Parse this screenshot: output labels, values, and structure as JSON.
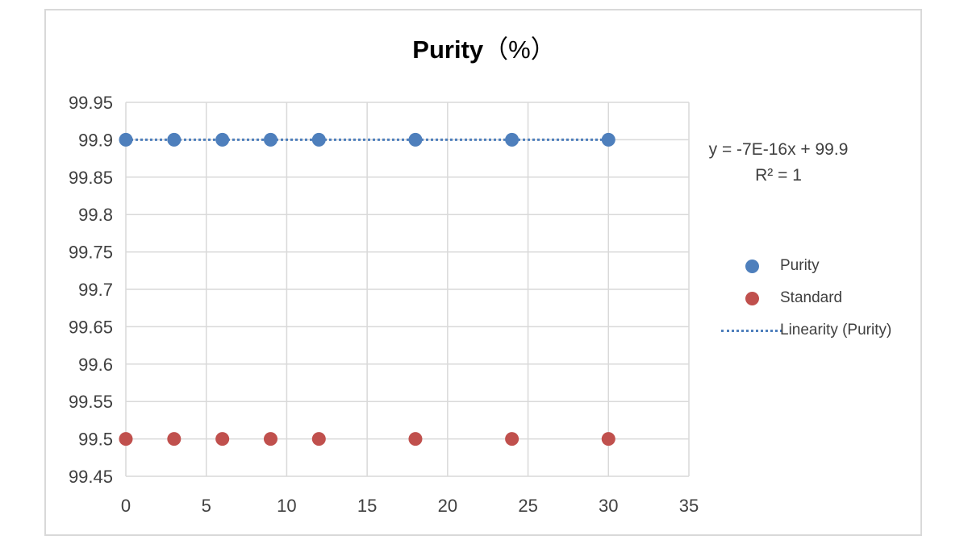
{
  "chart_data": {
    "type": "scatter",
    "title": "Purity",
    "title_unit": "（%）",
    "xlabel": "",
    "ylabel": "",
    "xlim": [
      0,
      35
    ],
    "ylim": [
      99.45,
      99.95
    ],
    "x_ticks": [
      0,
      5,
      10,
      15,
      20,
      25,
      30,
      35
    ],
    "y_ticks": [
      99.45,
      99.5,
      99.55,
      99.6,
      99.65,
      99.7,
      99.75,
      99.8,
      99.85,
      99.9,
      99.95
    ],
    "grid": true,
    "legend_position": "right",
    "series": [
      {
        "name": "Purity",
        "color": "#4e7fbc",
        "x": [
          0,
          3,
          6,
          9,
          12,
          18,
          24,
          30
        ],
        "y": [
          99.9,
          99.9,
          99.9,
          99.9,
          99.9,
          99.9,
          99.9,
          99.9
        ]
      },
      {
        "name": "Standard",
        "color": "#c0504d",
        "x": [
          0,
          3,
          6,
          9,
          12,
          18,
          24,
          30
        ],
        "y": [
          99.5,
          99.5,
          99.5,
          99.5,
          99.5,
          99.5,
          99.5,
          99.5
        ]
      }
    ],
    "trendline": {
      "name": "Linearity (Purity)",
      "of_series": "Purity",
      "color": "#4e7fbc",
      "style": "dotted",
      "equation": "y = -7E-16x + 99.9",
      "r_squared_label": "R² = 1",
      "x_range": [
        0,
        30
      ],
      "slope": 0,
      "intercept": 99.9
    }
  }
}
